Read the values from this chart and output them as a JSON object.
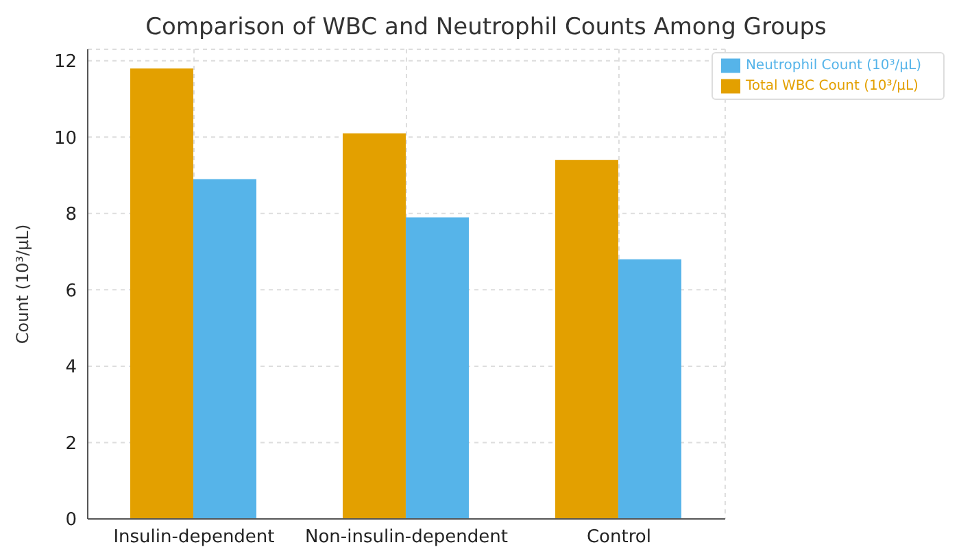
{
  "chart_data": {
    "type": "bar",
    "title": "Comparison of WBC and Neutrophil Counts Among Groups",
    "ylabel": "Count (10³/μL)",
    "categories": [
      "Insulin-dependent",
      "Non-insulin-dependent",
      "Control"
    ],
    "series": [
      {
        "name": "Total WBC Count (10³/μL)",
        "color": "#e3a000",
        "values": [
          11.8,
          10.1,
          9.4
        ]
      },
      {
        "name": "Neutrophil Count (10³/μL)",
        "color": "#56b4e9",
        "values": [
          8.9,
          7.9,
          6.8
        ]
      }
    ],
    "ylim": [
      0,
      12.3
    ],
    "yticks": [
      0,
      2,
      4,
      6,
      8,
      10,
      12
    ],
    "grid": true,
    "legend": "top right"
  }
}
